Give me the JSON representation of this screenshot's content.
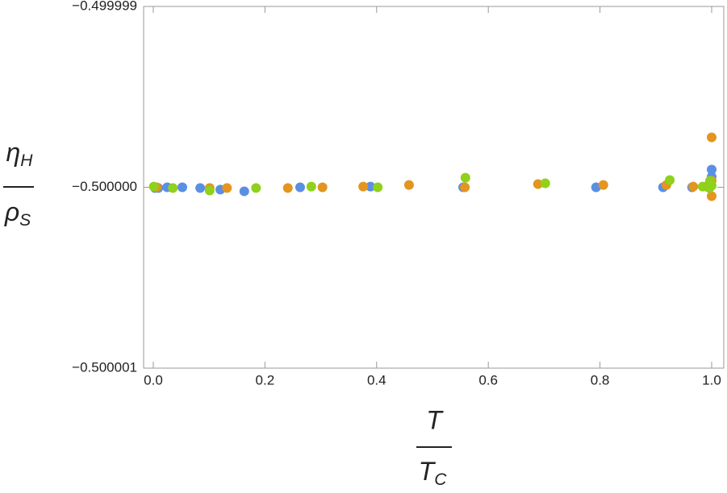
{
  "chart_data": {
    "type": "scatter",
    "xlabel": {
      "top": "T",
      "bottom": "T",
      "bottom_sub": "C"
    },
    "ylabel": {
      "top": "η",
      "top_sub": "H",
      "bottom": "ρ",
      "bottom_sub": "S"
    },
    "xlim": [
      -0.0173,
      1.0217
    ],
    "ylim": [
      -0.500001,
      -0.499999
    ],
    "xticks": [
      {
        "value": 0,
        "label": "0.0"
      },
      {
        "value": 0.2,
        "label": "0.2"
      },
      {
        "value": 0.4,
        "label": "0.4"
      },
      {
        "value": 0.6,
        "label": "0.6"
      },
      {
        "value": 0.8,
        "label": "0.8"
      },
      {
        "value": 1,
        "label": "1.0"
      }
    ],
    "yticks": [
      {
        "value": -0.500001,
        "label": "−0.500001"
      },
      {
        "value": -0.5,
        "label": "−0.500000"
      },
      {
        "value": -0.499999,
        "label": "−0.499999"
      }
    ],
    "series": [
      {
        "color": "#5b8fe3",
        "x": [
          0.003,
          0.009,
          0.025,
          0.052,
          0.084,
          0.12,
          0.163,
          0.263,
          0.389,
          0.555,
          0.793,
          0.913,
          0.965,
          1.0,
          1.0,
          0.997
        ],
        "values": [
          -0.500000004,
          -0.500000004,
          -0.5,
          -0.5,
          -0.500000004,
          -0.500000013,
          -0.500000022,
          -0.5,
          -0.499999996,
          -0.5,
          -0.5,
          -0.5,
          -0.5,
          -0.499999942,
          -0.499999902,
          -0.499999973
        ]
      },
      {
        "color": "#e3951f",
        "x": [
          0.006,
          0.101,
          0.132,
          0.241,
          0.303,
          0.376,
          0.458,
          0.558,
          0.689,
          0.806,
          0.919,
          0.967,
          0.991,
          0.996,
          1.0,
          1.0,
          1.0
        ],
        "values": [
          -0.5,
          -0.500000004,
          -0.500000004,
          -0.500000004,
          -0.5,
          -0.499999996,
          -0.499999987,
          -0.5,
          -0.499999982,
          -0.499999987,
          -0.499999987,
          -0.499999996,
          -0.499999996,
          -0.499999982,
          -0.499999724,
          -0.500000049,
          -0.499999964
        ]
      },
      {
        "color": "#8fd11c",
        "x": [
          0.001,
          0.035,
          0.101,
          0.184,
          0.283,
          0.402,
          0.559,
          0.702,
          0.925,
          0.984,
          0.996,
          1.0,
          0.997
        ],
        "values": [
          -0.499999996,
          -0.500000004,
          -0.500000018,
          -0.500000004,
          -0.499999996,
          -0.5,
          -0.499999947,
          -0.499999978,
          -0.49999996,
          -0.499999996,
          -0.500000004,
          -0.499999991,
          -0.499999964
        ]
      }
    ]
  }
}
